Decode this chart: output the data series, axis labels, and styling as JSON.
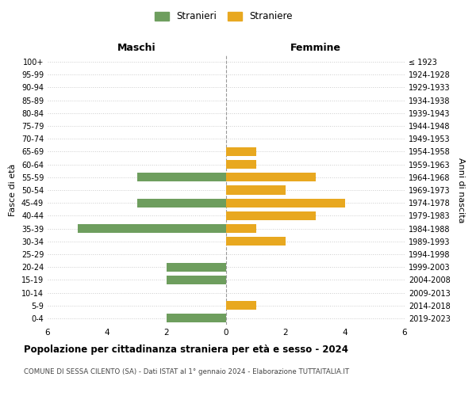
{
  "age_groups": [
    "100+",
    "95-99",
    "90-94",
    "85-89",
    "80-84",
    "75-79",
    "70-74",
    "65-69",
    "60-64",
    "55-59",
    "50-54",
    "45-49",
    "40-44",
    "35-39",
    "30-34",
    "25-29",
    "20-24",
    "15-19",
    "10-14",
    "5-9",
    "0-4"
  ],
  "birth_years": [
    "≤ 1923",
    "1924-1928",
    "1929-1933",
    "1934-1938",
    "1939-1943",
    "1944-1948",
    "1949-1953",
    "1954-1958",
    "1959-1963",
    "1964-1968",
    "1969-1973",
    "1974-1978",
    "1979-1983",
    "1984-1988",
    "1989-1993",
    "1994-1998",
    "1999-2003",
    "2004-2008",
    "2009-2013",
    "2014-2018",
    "2019-2023"
  ],
  "maschi": [
    0,
    0,
    0,
    0,
    0,
    0,
    0,
    0,
    0,
    3,
    0,
    3,
    0,
    5,
    0,
    0,
    2,
    2,
    0,
    0,
    2
  ],
  "femmine": [
    0,
    0,
    0,
    0,
    0,
    0,
    0,
    1,
    1,
    3,
    2,
    4,
    3,
    1,
    2,
    0,
    0,
    0,
    0,
    1,
    0
  ],
  "color_maschi": "#6e9e5e",
  "color_femmine": "#e8a820",
  "title": "Popolazione per cittadinanza straniera per età e sesso - 2024",
  "subtitle": "COMUNE DI SESSA CILENTO (SA) - Dati ISTAT al 1° gennaio 2024 - Elaborazione TUTTAITALIA.IT",
  "xlabel_left": "Maschi",
  "xlabel_right": "Femmine",
  "ylabel_left": "Fasce di età",
  "ylabel_right": "Anni di nascita",
  "legend_maschi": "Stranieri",
  "legend_femmine": "Straniere",
  "xlim": 6,
  "background_color": "#ffffff",
  "grid_color": "#cccccc"
}
